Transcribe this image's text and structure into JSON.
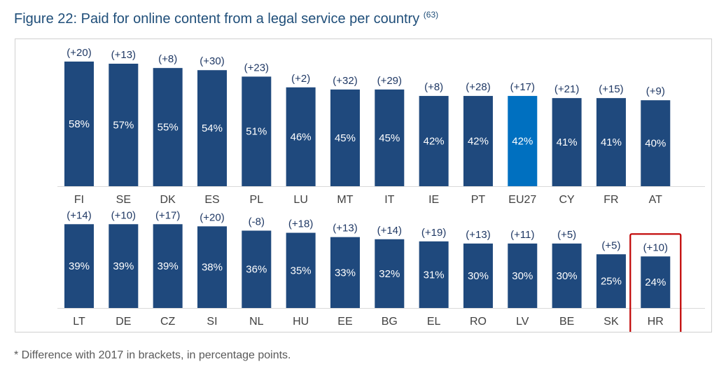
{
  "title": {
    "text": "Figure 22: Paid for online content from a legal service per country",
    "note_open": "(",
    "note_num": "63",
    "note_close": ")"
  },
  "footnote": "* Difference with 2017 in brackets, in percentage points.",
  "colors": {
    "bar": "#1f497d",
    "bar_highlight": "#0070c0",
    "bar_label": "#ffffff",
    "diff_label": "#1f3864",
    "axis_label": "#404040",
    "axis_line": "#d9d9d9",
    "highlight_box": "#c00000"
  },
  "chart_data": [
    {
      "type": "bar",
      "categories": [
        "FI",
        "SE",
        "DK",
        "ES",
        "PL",
        "LU",
        "MT",
        "IT",
        "IE",
        "PT",
        "EU27",
        "CY",
        "FR",
        "AT"
      ],
      "values": [
        58,
        57,
        55,
        54,
        51,
        46,
        45,
        45,
        42,
        42,
        42,
        41,
        41,
        40
      ],
      "value_labels": [
        "58%",
        "57%",
        "55%",
        "54%",
        "51%",
        "46%",
        "45%",
        "45%",
        "42%",
        "42%",
        "42%",
        "41%",
        "41%",
        "40%"
      ],
      "diff_labels": [
        "(+20)",
        "(+13)",
        "(+8)",
        "(+30)",
        "(+23)",
        "(+2)",
        "(+32)",
        "(+29)",
        "(+8)",
        "(+28)",
        "(+17)",
        "(+21)",
        "(+15)",
        "(+9)"
      ],
      "highlight_bar": "EU27",
      "unit": "%"
    },
    {
      "type": "bar",
      "categories": [
        "LT",
        "DE",
        "CZ",
        "SI",
        "NL",
        "HU",
        "EE",
        "BG",
        "EL",
        "RO",
        "LV",
        "BE",
        "SK",
        "HR"
      ],
      "values": [
        39,
        39,
        39,
        38,
        36,
        35,
        33,
        32,
        31,
        30,
        30,
        30,
        25,
        24
      ],
      "value_labels": [
        "39%",
        "39%",
        "39%",
        "38%",
        "36%",
        "35%",
        "33%",
        "32%",
        "31%",
        "30%",
        "30%",
        "30%",
        "25%",
        "24%"
      ],
      "diff_labels": [
        "(+14)",
        "(+10)",
        "(+17)",
        "(+20)",
        "(-8)",
        "(+18)",
        "(+13)",
        "(+14)",
        "(+19)",
        "(+13)",
        "(+11)",
        "(+5)",
        "(+5)",
        "(+10)"
      ],
      "boxed_category": "HR",
      "unit": "%"
    }
  ]
}
